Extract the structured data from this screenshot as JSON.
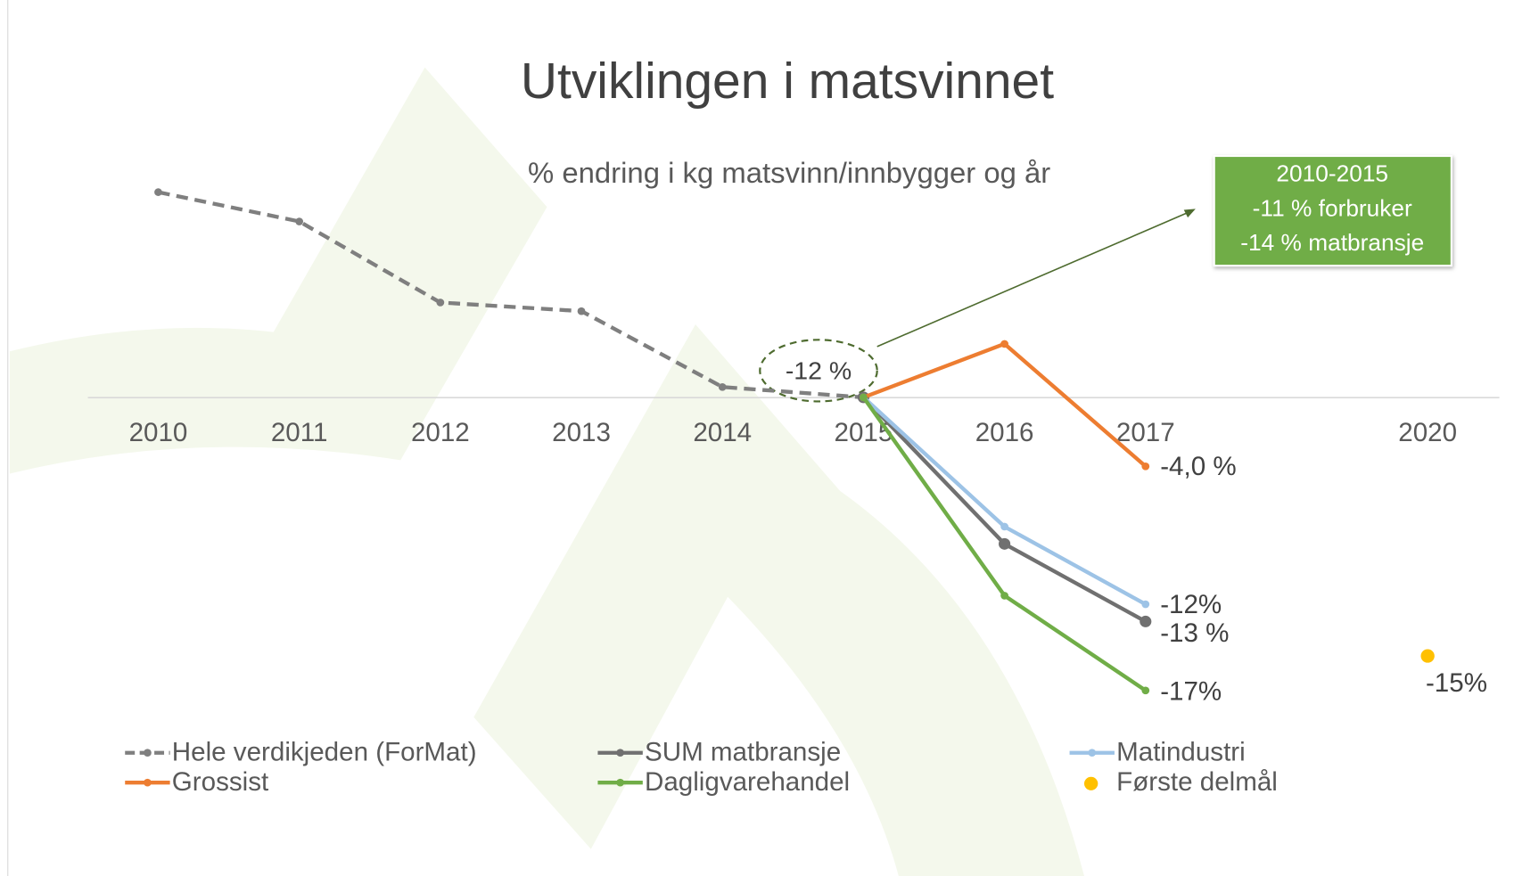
{
  "chart_data": {
    "type": "line",
    "title": "Utviklingen i matsvinnet",
    "subtitle": "% endring i kg matsvinn/innbygger og år",
    "categories": [
      "2010",
      "2011",
      "2012",
      "2013",
      "2014",
      "2015",
      "2016",
      "2017",
      null,
      "2020"
    ],
    "ylim": [
      -20,
      14
    ],
    "series": [
      {
        "name": "Hele verdikjeden (ForMat)",
        "color": "#7f7f7f",
        "dashed": true,
        "values": [
          11.9,
          10.2,
          5.5,
          5.0,
          0.6,
          0,
          null,
          null,
          null,
          null
        ]
      },
      {
        "name": "SUM matbransje",
        "color": "#707070",
        "values": [
          null,
          null,
          null,
          null,
          null,
          0,
          -8.5,
          -13,
          null,
          null
        ],
        "value_labels": [
          null,
          null,
          null,
          null,
          null,
          null,
          null,
          "-13 %",
          null,
          null
        ]
      },
      {
        "name": "Matindustri",
        "color": "#9dc3e6",
        "values": [
          null,
          null,
          null,
          null,
          null,
          0,
          -7.5,
          -12,
          null,
          null
        ],
        "value_labels": [
          null,
          null,
          null,
          null,
          null,
          null,
          null,
          "-12%",
          null,
          null
        ]
      },
      {
        "name": "Grossist",
        "color": "#ed7d31",
        "values": [
          null,
          null,
          null,
          null,
          null,
          0,
          3.1,
          -4.0,
          null,
          null
        ],
        "value_labels": [
          null,
          null,
          null,
          null,
          null,
          null,
          null,
          "-4,0 %",
          null,
          null
        ]
      },
      {
        "name": "Dagligvarehandel",
        "color": "#70ad47",
        "values": [
          null,
          null,
          null,
          null,
          null,
          0,
          -11.5,
          -17,
          null,
          null
        ],
        "value_labels": [
          null,
          null,
          null,
          null,
          null,
          null,
          null,
          "-17%",
          null,
          null
        ]
      },
      {
        "name": "Første delmål",
        "color": "#ffc000",
        "markers_only": true,
        "values": [
          null,
          null,
          null,
          null,
          null,
          null,
          null,
          null,
          null,
          -15
        ],
        "value_labels": [
          null,
          null,
          null,
          null,
          null,
          null,
          null,
          null,
          null,
          "-15%"
        ]
      }
    ],
    "annotations": {
      "circle_label": "-12 %",
      "box_lines": [
        "2010-2015",
        "-11 % forbruker",
        "-14 % matbransje"
      ]
    }
  }
}
